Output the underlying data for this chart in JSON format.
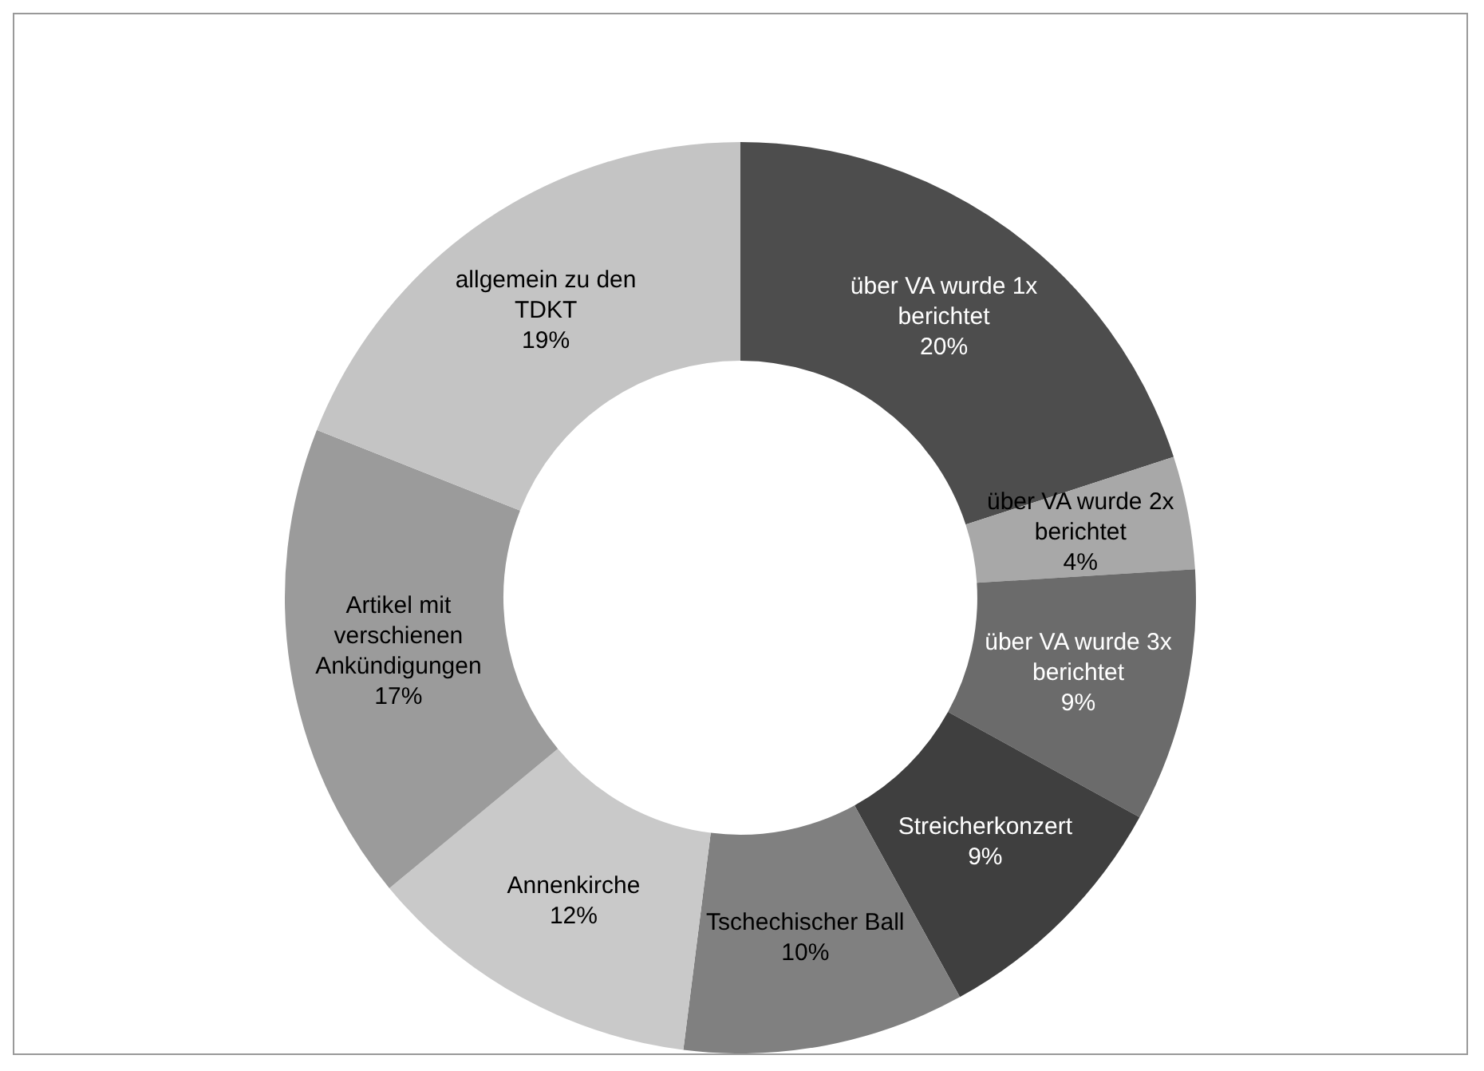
{
  "chart_data": {
    "type": "donut",
    "categories": [
      "über VA wurde 1x berichtet",
      "über VA wurde 2x berichtet",
      "über VA wurde 3x berichtet",
      "Streicherkonzert",
      "Tschechischer Ball",
      "Annenkirche",
      "Artikel mit verschienen Ankündigungen",
      "allgemein zu den TDKT"
    ],
    "values": [
      20,
      4,
      9,
      9,
      10,
      12,
      17,
      19
    ],
    "value_labels": [
      "20%",
      "4%",
      "9%",
      "9%",
      "10%",
      "12%",
      "17%",
      "19%"
    ],
    "colors": [
      "#4d4d4d",
      "#a8a8a8",
      "#6b6b6b",
      "#3f3f3f",
      "#808080",
      "#c9c9c9",
      "#9b9b9b",
      "#c4c4c4"
    ],
    "legend": false
  }
}
